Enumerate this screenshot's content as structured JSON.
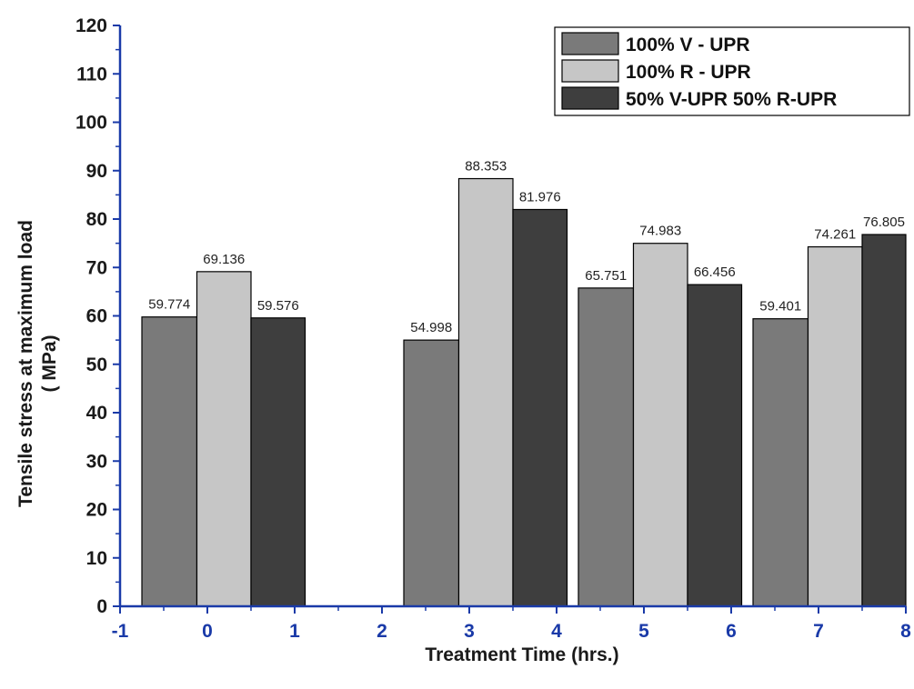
{
  "chart_data": {
    "type": "bar",
    "xlabel": "Treatment Time (hrs.)",
    "ylabel_lines": [
      "Tensile stress at maximum load",
      "( MPa)"
    ],
    "xlim": [
      -1,
      8
    ],
    "ylim": [
      0,
      120
    ],
    "x_ticks": [
      "-1",
      "0",
      "1",
      "2",
      "3",
      "4",
      "5",
      "6",
      "7",
      "8"
    ],
    "y_ticks": [
      "0",
      "10",
      "20",
      "30",
      "40",
      "50",
      "60",
      "70",
      "80",
      "90",
      "100",
      "110",
      "120"
    ],
    "legend_position": "top-right",
    "series": [
      {
        "name": "100% V - UPR",
        "color": "#7a7a7a",
        "bars": [
          {
            "x_start": -0.75,
            "x_end": -0.12,
            "value": 59.774,
            "label": "59.774"
          },
          {
            "x_start": 2.25,
            "x_end": 2.88,
            "value": 54.998,
            "label": "54.998"
          },
          {
            "x_start": 4.25,
            "x_end": 4.88,
            "value": 65.751,
            "label": "65.751"
          },
          {
            "x_start": 6.25,
            "x_end": 6.88,
            "value": 59.401,
            "label": "59.401"
          }
        ]
      },
      {
        "name": "100% R - UPR",
        "color": "#c6c6c6",
        "bars": [
          {
            "x_start": -0.12,
            "x_end": 0.5,
            "value": 69.136,
            "label": "69.136"
          },
          {
            "x_start": 2.88,
            "x_end": 3.5,
            "value": 88.353,
            "label": "88.353"
          },
          {
            "x_start": 4.88,
            "x_end": 5.5,
            "value": 74.983,
            "label": "74.983"
          },
          {
            "x_start": 6.88,
            "x_end": 7.5,
            "value": 74.261,
            "label": "74.261"
          }
        ]
      },
      {
        "name": "50% V-UPR 50% R-UPR",
        "color": "#3e3e3e",
        "bars": [
          {
            "x_start": 0.5,
            "x_end": 1.12,
            "value": 59.576,
            "label": "59.576"
          },
          {
            "x_start": 3.5,
            "x_end": 4.12,
            "value": 81.976,
            "label": "81.976"
          },
          {
            "x_start": 5.5,
            "x_end": 6.12,
            "value": 66.456,
            "label": "66.456"
          },
          {
            "x_start": 7.5,
            "x_end": 8.0,
            "value": 76.805,
            "label": "76.805"
          }
        ]
      }
    ]
  }
}
